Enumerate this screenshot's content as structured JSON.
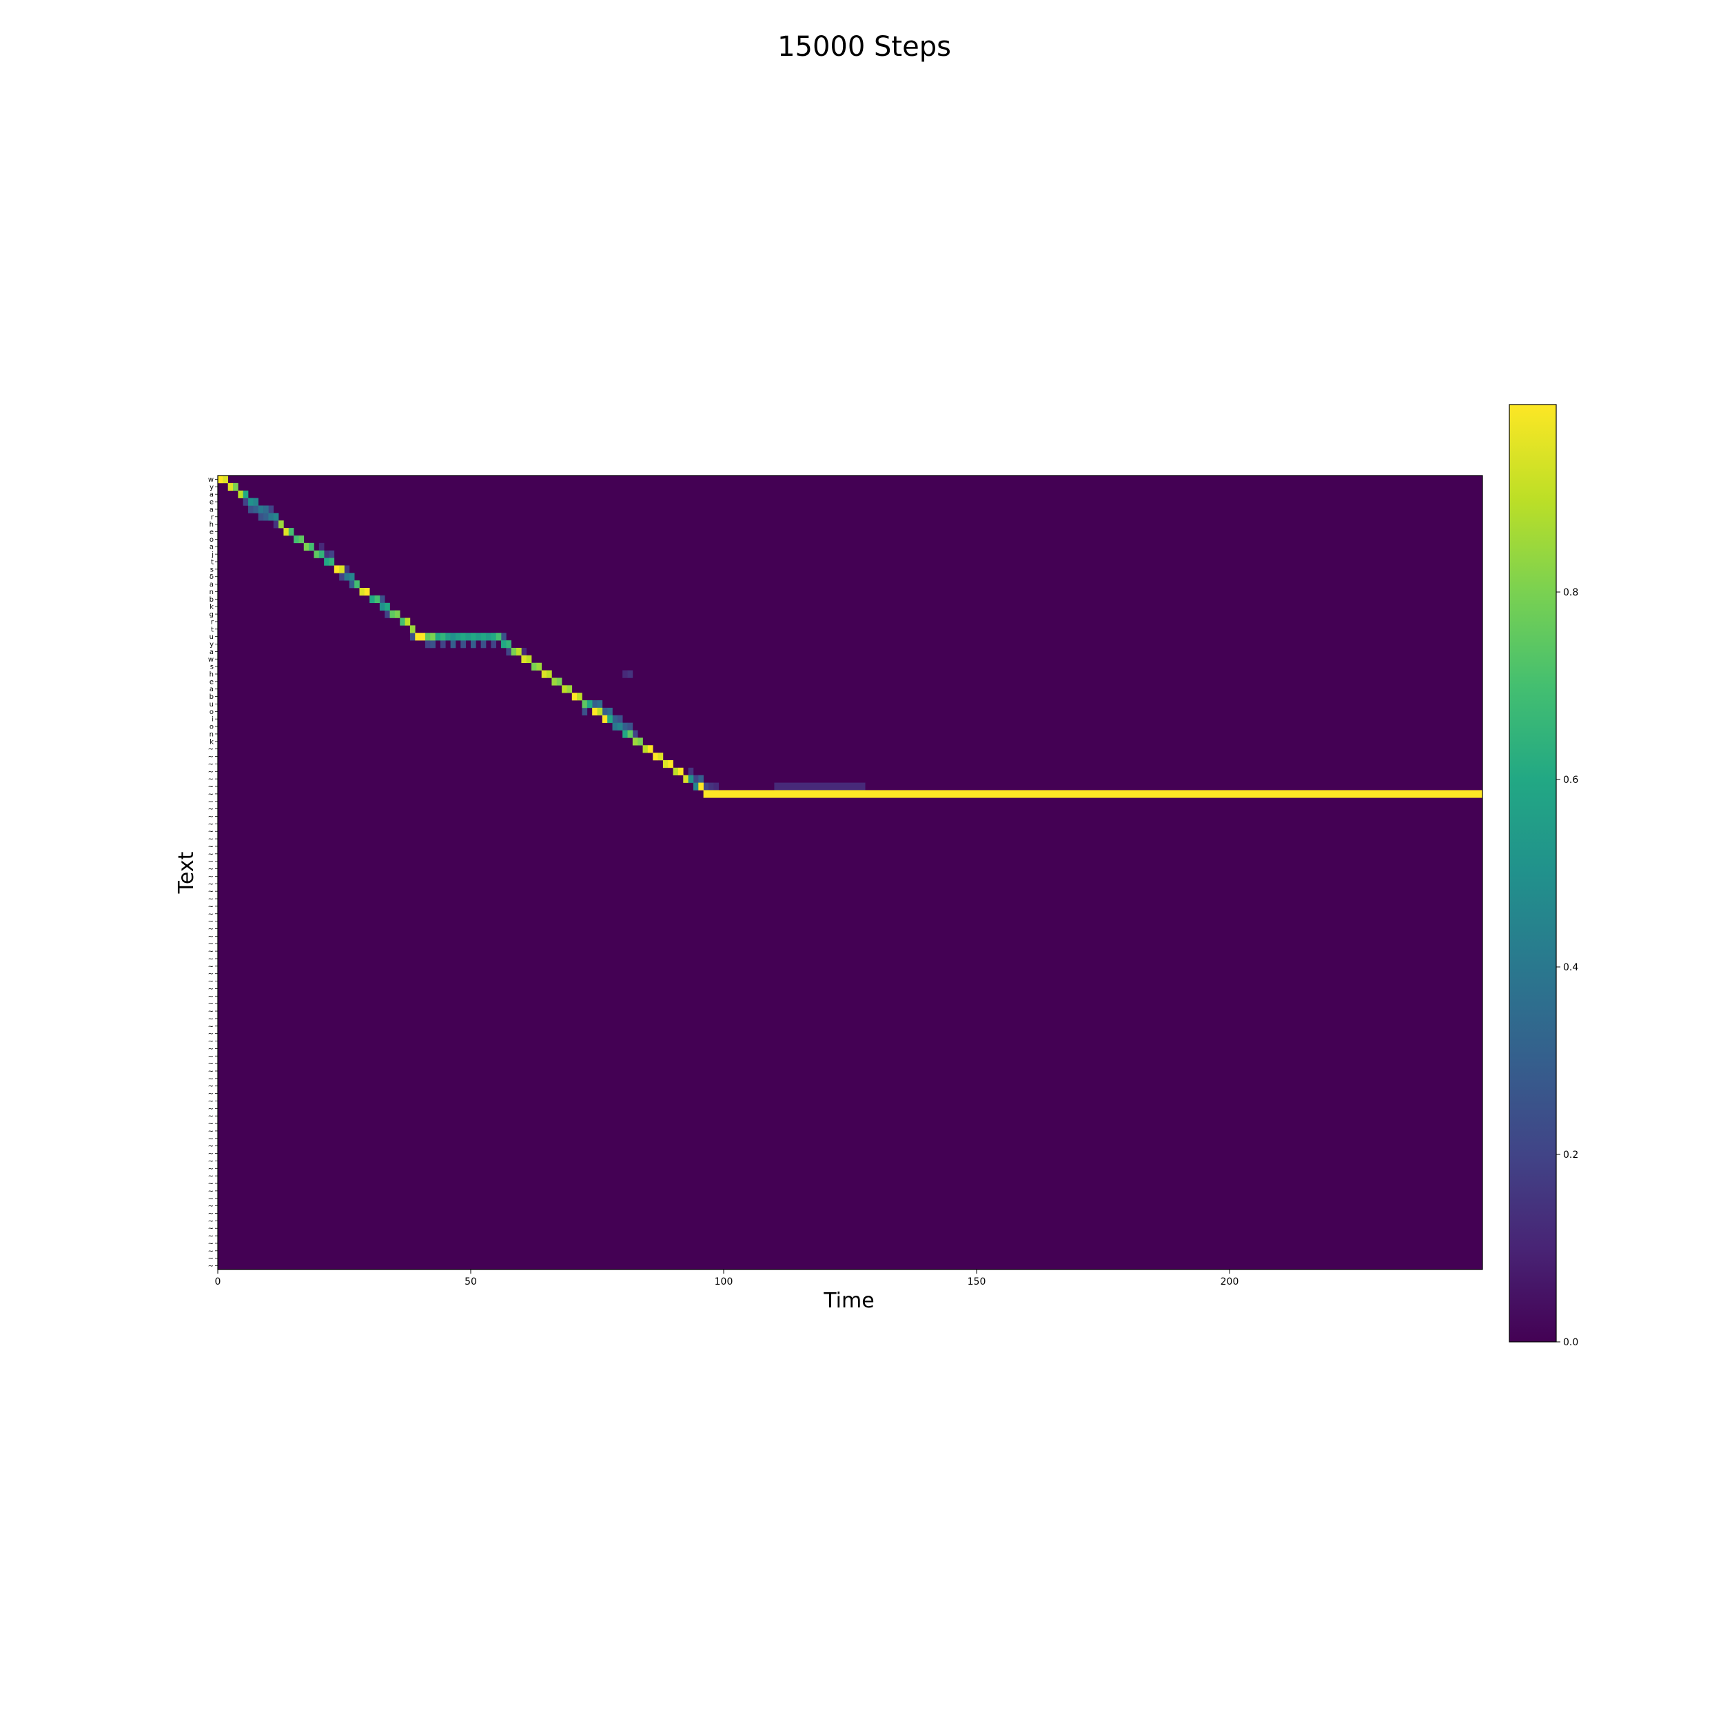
{
  "chart_data": {
    "type": "heatmap",
    "title": "15000 Steps",
    "xlabel": "Time",
    "ylabel": "Text",
    "colormap": "viridis",
    "colors": {
      "low": "#440154",
      "high": "#fde725",
      "background": "#440154"
    },
    "x_range": [
      0,
      250
    ],
    "x_ticks": [
      0,
      50,
      100,
      150,
      200
    ],
    "value_range": [
      0.0,
      1.0
    ],
    "colorbar_ticks": [
      0.0,
      0.2,
      0.4,
      0.6,
      0.8
    ],
    "colorbar_tick_labels": [
      "0.0",
      "0.2",
      "0.4",
      "0.6",
      "0.8"
    ],
    "grid": false,
    "text_tokens": [
      "w",
      "y",
      "a",
      "e",
      "a",
      "r",
      "h",
      "e",
      "o",
      "a",
      "j",
      "t",
      "s",
      "δ",
      "a",
      "n",
      "b",
      "k",
      "g",
      "r",
      "t",
      "u",
      "y",
      "a",
      "w",
      "s",
      "h",
      "e",
      "a",
      "b",
      "u",
      "o",
      "i",
      "o",
      "n",
      "k"
    ],
    "pad_token": "~",
    "pad_count": 70,
    "alignment_path": [
      [
        0,
        0,
        1.0
      ],
      [
        1,
        0,
        0.95
      ],
      [
        2,
        1,
        0.95
      ],
      [
        3,
        1,
        0.8
      ],
      [
        4,
        2,
        0.9
      ],
      [
        5,
        2,
        0.6
      ],
      [
        6,
        3,
        0.5
      ],
      [
        7,
        3,
        0.45
      ],
      [
        8,
        4,
        0.4
      ],
      [
        9,
        4,
        0.35
      ],
      [
        10,
        5,
        0.4
      ],
      [
        11,
        5,
        0.45
      ],
      [
        12,
        6,
        0.85
      ],
      [
        13,
        7,
        0.95
      ],
      [
        14,
        7,
        0.7
      ],
      [
        15,
        8,
        0.7
      ],
      [
        16,
        8,
        0.75
      ],
      [
        17,
        9,
        0.8
      ],
      [
        18,
        9,
        0.7
      ],
      [
        19,
        10,
        0.75
      ],
      [
        20,
        10,
        0.65
      ],
      [
        21,
        11,
        0.6
      ],
      [
        22,
        11,
        0.65
      ],
      [
        23,
        12,
        1.0
      ],
      [
        24,
        12,
        0.95
      ],
      [
        25,
        13,
        0.4
      ],
      [
        26,
        13,
        0.45
      ],
      [
        27,
        14,
        0.7
      ],
      [
        28,
        15,
        0.95
      ],
      [
        29,
        15,
        1.0
      ],
      [
        30,
        16,
        0.6
      ],
      [
        31,
        16,
        0.7
      ],
      [
        32,
        17,
        0.5
      ],
      [
        33,
        17,
        0.6
      ],
      [
        34,
        18,
        0.75
      ],
      [
        35,
        18,
        0.8
      ],
      [
        36,
        19,
        0.7
      ],
      [
        37,
        19,
        0.9
      ],
      [
        38,
        20,
        0.85
      ],
      [
        39,
        21,
        1.0
      ],
      [
        40,
        21,
        1.0
      ],
      [
        41,
        21,
        0.75
      ],
      [
        42,
        21,
        0.8
      ],
      [
        43,
        21,
        0.6
      ],
      [
        44,
        21,
        0.65
      ],
      [
        45,
        21,
        0.55
      ],
      [
        46,
        21,
        0.5
      ],
      [
        47,
        21,
        0.55
      ],
      [
        48,
        21,
        0.6
      ],
      [
        49,
        21,
        0.55
      ],
      [
        50,
        21,
        0.6
      ],
      [
        51,
        21,
        0.55
      ],
      [
        52,
        21,
        0.6
      ],
      [
        53,
        21,
        0.55
      ],
      [
        54,
        21,
        0.6
      ],
      [
        55,
        21,
        0.7
      ],
      [
        56,
        22,
        0.6
      ],
      [
        57,
        22,
        0.65
      ],
      [
        58,
        23,
        0.8
      ],
      [
        59,
        23,
        0.9
      ],
      [
        60,
        24,
        0.95
      ],
      [
        61,
        24,
        0.9
      ],
      [
        62,
        25,
        0.8
      ],
      [
        63,
        25,
        0.85
      ],
      [
        64,
        26,
        0.95
      ],
      [
        65,
        26,
        0.9
      ],
      [
        66,
        27,
        0.85
      ],
      [
        67,
        27,
        0.8
      ],
      [
        68,
        28,
        0.9
      ],
      [
        69,
        28,
        0.85
      ],
      [
        70,
        29,
        1.0
      ],
      [
        71,
        29,
        0.9
      ],
      [
        72,
        30,
        0.75
      ],
      [
        73,
        30,
        0.6
      ],
      [
        74,
        31,
        1.0
      ],
      [
        75,
        31,
        0.9
      ],
      [
        76,
        32,
        1.0
      ],
      [
        77,
        32,
        0.6
      ],
      [
        78,
        33,
        0.4
      ],
      [
        79,
        33,
        0.45
      ],
      [
        80,
        34,
        0.6
      ],
      [
        81,
        34,
        0.75
      ],
      [
        82,
        35,
        0.85
      ],
      [
        83,
        35,
        0.8
      ],
      [
        84,
        36,
        0.9
      ],
      [
        85,
        36,
        1.0
      ],
      [
        86,
        37,
        1.0
      ],
      [
        87,
        37,
        0.95
      ],
      [
        88,
        38,
        0.95
      ],
      [
        89,
        38,
        1.0
      ],
      [
        90,
        39,
        0.9
      ],
      [
        91,
        39,
        1.0
      ],
      [
        92,
        40,
        0.95
      ],
      [
        93,
        40,
        0.5
      ],
      [
        94,
        41,
        0.45
      ],
      [
        95,
        41,
        1.0
      ]
    ],
    "diffuse_cells": [
      [
        5,
        3,
        0.2
      ],
      [
        6,
        4,
        0.25
      ],
      [
        7,
        4,
        0.3
      ],
      [
        8,
        5,
        0.25
      ],
      [
        9,
        5,
        0.3
      ],
      [
        10,
        4,
        0.2
      ],
      [
        11,
        6,
        0.15
      ],
      [
        20,
        9,
        0.12
      ],
      [
        21,
        10,
        0.15
      ],
      [
        22,
        10,
        0.2
      ],
      [
        24,
        13,
        0.2
      ],
      [
        25,
        12,
        0.15
      ],
      [
        26,
        14,
        0.3
      ],
      [
        32,
        16,
        0.25
      ],
      [
        33,
        18,
        0.2
      ],
      [
        38,
        21,
        0.25
      ],
      [
        41,
        22,
        0.2
      ],
      [
        42,
        22,
        0.25
      ],
      [
        44,
        22,
        0.2
      ],
      [
        46,
        22,
        0.3
      ],
      [
        48,
        22,
        0.25
      ],
      [
        50,
        22,
        0.3
      ],
      [
        52,
        22,
        0.25
      ],
      [
        54,
        22,
        0.2
      ],
      [
        56,
        21,
        0.25
      ],
      [
        57,
        23,
        0.2
      ],
      [
        60,
        23,
        0.12
      ],
      [
        80,
        26,
        0.12
      ],
      [
        81,
        26,
        0.15
      ],
      [
        72,
        31,
        0.25
      ],
      [
        74,
        30,
        0.3
      ],
      [
        75,
        30,
        0.35
      ],
      [
        76,
        31,
        0.3
      ],
      [
        77,
        31,
        0.35
      ],
      [
        78,
        32,
        0.3
      ],
      [
        79,
        32,
        0.25
      ],
      [
        80,
        33,
        0.3
      ],
      [
        81,
        33,
        0.25
      ],
      [
        82,
        34,
        0.2
      ],
      [
        93,
        39,
        0.15
      ],
      [
        94,
        40,
        0.2
      ],
      [
        95,
        40,
        0.3
      ],
      [
        96,
        41,
        0.2
      ],
      [
        97,
        41,
        0.15
      ],
      [
        98,
        41,
        0.12
      ]
    ],
    "steady_row": 42,
    "steady_start": 96,
    "steady_end": 250,
    "steady_value": 1.0,
    "steady_halo": [
      [
        110,
        128,
        0.12
      ]
    ]
  }
}
